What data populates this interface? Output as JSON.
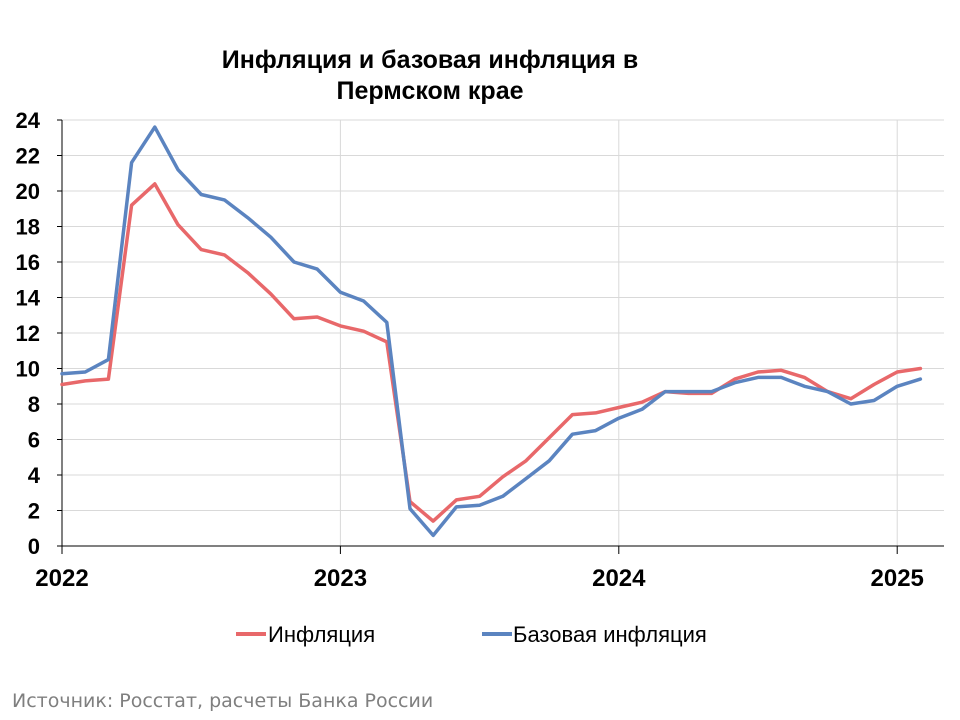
{
  "chart_data": {
    "type": "line",
    "title_lines": [
      "Инфляция и базовая инфляция в",
      "Пермском крае"
    ],
    "xlabel": "",
    "ylabel": "",
    "ylim": [
      0,
      24
    ],
    "yticks": [
      "0",
      "2",
      "4",
      "6",
      "8",
      "10",
      "12",
      "14",
      "16",
      "18",
      "20",
      "22",
      "24"
    ],
    "xtick_labels": [
      "2022",
      "2023",
      "2024",
      "2025"
    ],
    "grid": true,
    "legend_position": "bottom",
    "x": [
      "2022-01",
      "2022-02",
      "2022-03",
      "2022-04",
      "2022-05",
      "2022-06",
      "2022-07",
      "2022-08",
      "2022-09",
      "2022-10",
      "2022-11",
      "2022-12",
      "2023-01",
      "2023-02",
      "2023-03",
      "2023-04",
      "2023-05",
      "2023-06",
      "2023-07",
      "2023-08",
      "2023-09",
      "2023-10",
      "2023-11",
      "2023-12",
      "2024-01",
      "2024-02",
      "2024-03",
      "2024-04",
      "2024-05",
      "2024-06",
      "2024-07",
      "2024-08",
      "2024-09",
      "2024-10",
      "2024-11",
      "2024-12",
      "2025-01",
      "2025-02"
    ],
    "series": [
      {
        "name": "Инфляция",
        "color": "#e8686a",
        "values": [
          9.1,
          9.3,
          9.4,
          19.2,
          20.4,
          18.1,
          16.7,
          16.4,
          15.4,
          14.2,
          12.8,
          12.9,
          12.4,
          12.1,
          11.5,
          2.5,
          1.4,
          2.6,
          2.8,
          3.9,
          4.8,
          6.1,
          7.4,
          7.5,
          7.8,
          8.1,
          8.7,
          8.6,
          8.6,
          9.4,
          9.8,
          9.9,
          9.5,
          8.7,
          8.3,
          9.1,
          9.8,
          10.0
        ]
      },
      {
        "name": "Базовая инфляция",
        "color": "#5b84c0",
        "values": [
          9.7,
          9.8,
          10.5,
          21.6,
          23.6,
          21.2,
          19.8,
          19.5,
          18.5,
          17.4,
          16.0,
          15.6,
          14.3,
          13.8,
          12.6,
          2.1,
          0.6,
          2.2,
          2.3,
          2.8,
          3.8,
          4.8,
          6.3,
          6.5,
          7.2,
          7.7,
          8.7,
          8.7,
          8.7,
          9.2,
          9.5,
          9.5,
          9.0,
          8.7,
          8.0,
          8.2,
          9.0,
          9.4
        ]
      }
    ]
  },
  "source": "Источник: Росстат, расчеты Банка России"
}
